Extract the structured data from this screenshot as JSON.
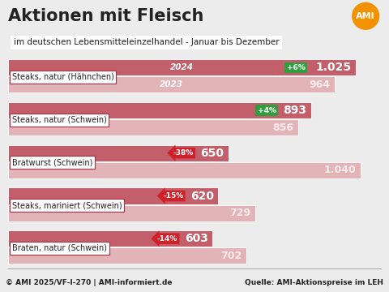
{
  "title": "Aktionen mit Fleisch",
  "subtitle": "im deutschen Lebensmitteleinzelhandel - Januar bis Dezember",
  "logo": "AMI",
  "footer": "© AMI 2025/VF-I-270 | AMI-informiert.de",
  "source": "Quelle: AMI-Aktionspreise im LEH",
  "chart_data": {
    "type": "bar",
    "orientation": "horizontal",
    "categories": [
      "Steaks, natur (Hähnchen)",
      "Steaks, natur (Schwein)",
      "Bratwurst (Schwein)",
      "Steaks, mariniert (Schwein)",
      "Braten, natur (Schwein)"
    ],
    "series": [
      {
        "name": "2024",
        "color": "#c25f6a",
        "values": [
          1025,
          893,
          650,
          620,
          603
        ],
        "value_labels": [
          "1.025",
          "893",
          "650",
          "620",
          "603"
        ]
      },
      {
        "name": "2023",
        "color": "#e2b3b7",
        "values": [
          964,
          856,
          1040,
          729,
          702
        ],
        "value_labels": [
          "964",
          "856",
          "1.040",
          "729",
          "702"
        ]
      }
    ],
    "changes": [
      "+6%",
      "+4%",
      "-38%",
      "-15%",
      "-14%"
    ],
    "data_labels": true,
    "tick_labels": false,
    "xlim": [
      0,
      1100
    ]
  }
}
